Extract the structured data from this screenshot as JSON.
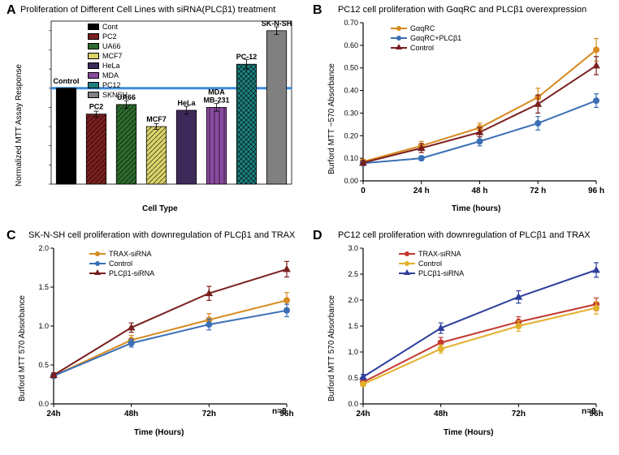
{
  "panelA": {
    "label": "A",
    "title": "Proliferation of Different Cell  Lines with siRNA(PLCβ1) treatment",
    "ylabel": "Normalized MTT Assay Response",
    "xlabel": "Cell Type",
    "ylim": [
      0,
      1.7
    ],
    "ytick_step": 0.2,
    "bar_data": [
      {
        "label": "Control",
        "value": 1.0,
        "err": 0.0,
        "fill": "#000000",
        "legend": "Cont"
      },
      {
        "label": "PC2",
        "value": 0.73,
        "err": 0.03,
        "fill": "#7a1f1f",
        "pattern": "hatch",
        "legend": "PC2"
      },
      {
        "label": "UA66",
        "value": 0.83,
        "err": 0.04,
        "fill": "#2d6b2d",
        "pattern": "hatch",
        "legend": "UA66"
      },
      {
        "label": "MCF7",
        "value": 0.6,
        "err": 0.03,
        "fill": "#d9d36a",
        "pattern": "hatch",
        "legend": "MCF7"
      },
      {
        "label": "HeLa",
        "value": 0.77,
        "err": 0.04,
        "fill": "#3d2a5a",
        "legend": "HeLa"
      },
      {
        "label": "MDA MB-231",
        "value": 0.8,
        "err": 0.04,
        "fill": "#8a4aa0",
        "pattern": "stripe",
        "legend": "MDA"
      },
      {
        "label": "PC-12",
        "value": 1.25,
        "err": 0.05,
        "fill": "#1d8080",
        "pattern": "cross",
        "legend": "PC12"
      },
      {
        "label": "SK-N-SH",
        "value": 1.6,
        "err": 0.04,
        "fill": "#808080",
        "legend": "SKNSH"
      }
    ],
    "refline_color": "#3a8dde",
    "refline_value": 1.0,
    "bg_color": "#ffffff"
  },
  "panelB": {
    "label": "B",
    "title": "PC12 cell proliferation with GαqRC and PLCβ1 overexpression",
    "ylabel": "Burford MTT ~570 Absorbance",
    "xlabel": "Time (hours)",
    "xlim": [
      0,
      96
    ],
    "xtick_labels": [
      "0",
      "24 h",
      "48 h",
      "72 h",
      "96 h"
    ],
    "ylim": [
      0,
      0.7
    ],
    "ytick_step": 0.1,
    "series": [
      {
        "name": "GαqRC",
        "color": "#d68a1f",
        "marker": "circle",
        "points": [
          {
            "x": 0,
            "y": 0.085,
            "e": 0.01
          },
          {
            "x": 24,
            "y": 0.155,
            "e": 0.02
          },
          {
            "x": 48,
            "y": 0.235,
            "e": 0.02
          },
          {
            "x": 72,
            "y": 0.37,
            "e": 0.04
          },
          {
            "x": 96,
            "y": 0.58,
            "e": 0.05
          }
        ]
      },
      {
        "name": "GαqRC+PLCβ1",
        "color": "#3a6fb5",
        "marker": "circle",
        "points": [
          {
            "x": 0,
            "y": 0.078,
            "e": 0.01
          },
          {
            "x": 24,
            "y": 0.1,
            "e": 0.01
          },
          {
            "x": 48,
            "y": 0.175,
            "e": 0.02
          },
          {
            "x": 72,
            "y": 0.255,
            "e": 0.03
          },
          {
            "x": 96,
            "y": 0.355,
            "e": 0.03
          }
        ]
      },
      {
        "name": "Control",
        "color": "#7a1f1f",
        "marker": "triangle",
        "points": [
          {
            "x": 0,
            "y": 0.08,
            "e": 0.01
          },
          {
            "x": 24,
            "y": 0.145,
            "e": 0.02
          },
          {
            "x": 48,
            "y": 0.215,
            "e": 0.02
          },
          {
            "x": 72,
            "y": 0.34,
            "e": 0.04
          },
          {
            "x": 96,
            "y": 0.51,
            "e": 0.04
          }
        ]
      }
    ]
  },
  "panelC": {
    "label": "C",
    "title": "SK-N-SH cell proliferation with downregulation of PLCβ1 and TRAX",
    "ylabel": "Burford MTT 570 Absorbance",
    "xlabel": "Time (Hours)",
    "xlim": [
      24,
      96
    ],
    "xtick_labels": [
      "24h",
      "48h",
      "72h",
      "96h"
    ],
    "ylim": [
      0,
      2.0
    ],
    "ytick_step": 0.5,
    "n_label": "n=8",
    "series": [
      {
        "name": "TRAX-siRNA",
        "color": "#d68a1f",
        "marker": "circle",
        "points": [
          {
            "x": 24,
            "y": 0.36,
            "e": 0.03
          },
          {
            "x": 48,
            "y": 0.82,
            "e": 0.06
          },
          {
            "x": 72,
            "y": 1.08,
            "e": 0.08
          },
          {
            "x": 96,
            "y": 1.33,
            "e": 0.1
          }
        ]
      },
      {
        "name": "Control",
        "color": "#3a6fb5",
        "marker": "circle",
        "points": [
          {
            "x": 24,
            "y": 0.36,
            "e": 0.03
          },
          {
            "x": 48,
            "y": 0.78,
            "e": 0.05
          },
          {
            "x": 72,
            "y": 1.02,
            "e": 0.07
          },
          {
            "x": 96,
            "y": 1.2,
            "e": 0.08
          }
        ]
      },
      {
        "name": "PLCβ1-siRNA",
        "color": "#7a1f1f",
        "marker": "triangle",
        "points": [
          {
            "x": 24,
            "y": 0.37,
            "e": 0.03
          },
          {
            "x": 48,
            "y": 0.98,
            "e": 0.06
          },
          {
            "x": 72,
            "y": 1.42,
            "e": 0.09
          },
          {
            "x": 96,
            "y": 1.73,
            "e": 0.1
          }
        ]
      }
    ]
  },
  "panelD": {
    "label": "D",
    "title": "PC12 cell proliferation with downregulation of PLCβ1 and TRAX",
    "ylabel": "Burford MTT 570 Absorbance",
    "xlabel": "Time (Hours)",
    "xlim": [
      24,
      96
    ],
    "xtick_labels": [
      "24h",
      "48h",
      "72h",
      "96h"
    ],
    "ylim": [
      0,
      3.0
    ],
    "ytick_step": 0.5,
    "n_label": "n=8",
    "series": [
      {
        "name": "TRAX-siRNA",
        "color": "#c4372f",
        "marker": "circle",
        "points": [
          {
            "x": 24,
            "y": 0.42,
            "e": 0.04
          },
          {
            "x": 48,
            "y": 1.18,
            "e": 0.1
          },
          {
            "x": 72,
            "y": 1.58,
            "e": 0.1
          },
          {
            "x": 96,
            "y": 1.92,
            "e": 0.12
          }
        ]
      },
      {
        "name": "Control",
        "color": "#e2b02a",
        "marker": "circle",
        "points": [
          {
            "x": 24,
            "y": 0.38,
            "e": 0.04
          },
          {
            "x": 48,
            "y": 1.06,
            "e": 0.08
          },
          {
            "x": 72,
            "y": 1.5,
            "e": 0.1
          },
          {
            "x": 96,
            "y": 1.85,
            "e": 0.12
          }
        ]
      },
      {
        "name": "PLCβ1-siRNA",
        "color": "#2f3f9c",
        "marker": "triangle",
        "points": [
          {
            "x": 24,
            "y": 0.52,
            "e": 0.05
          },
          {
            "x": 48,
            "y": 1.46,
            "e": 0.1
          },
          {
            "x": 72,
            "y": 2.06,
            "e": 0.12
          },
          {
            "x": 96,
            "y": 2.58,
            "e": 0.14
          }
        ]
      }
    ]
  }
}
